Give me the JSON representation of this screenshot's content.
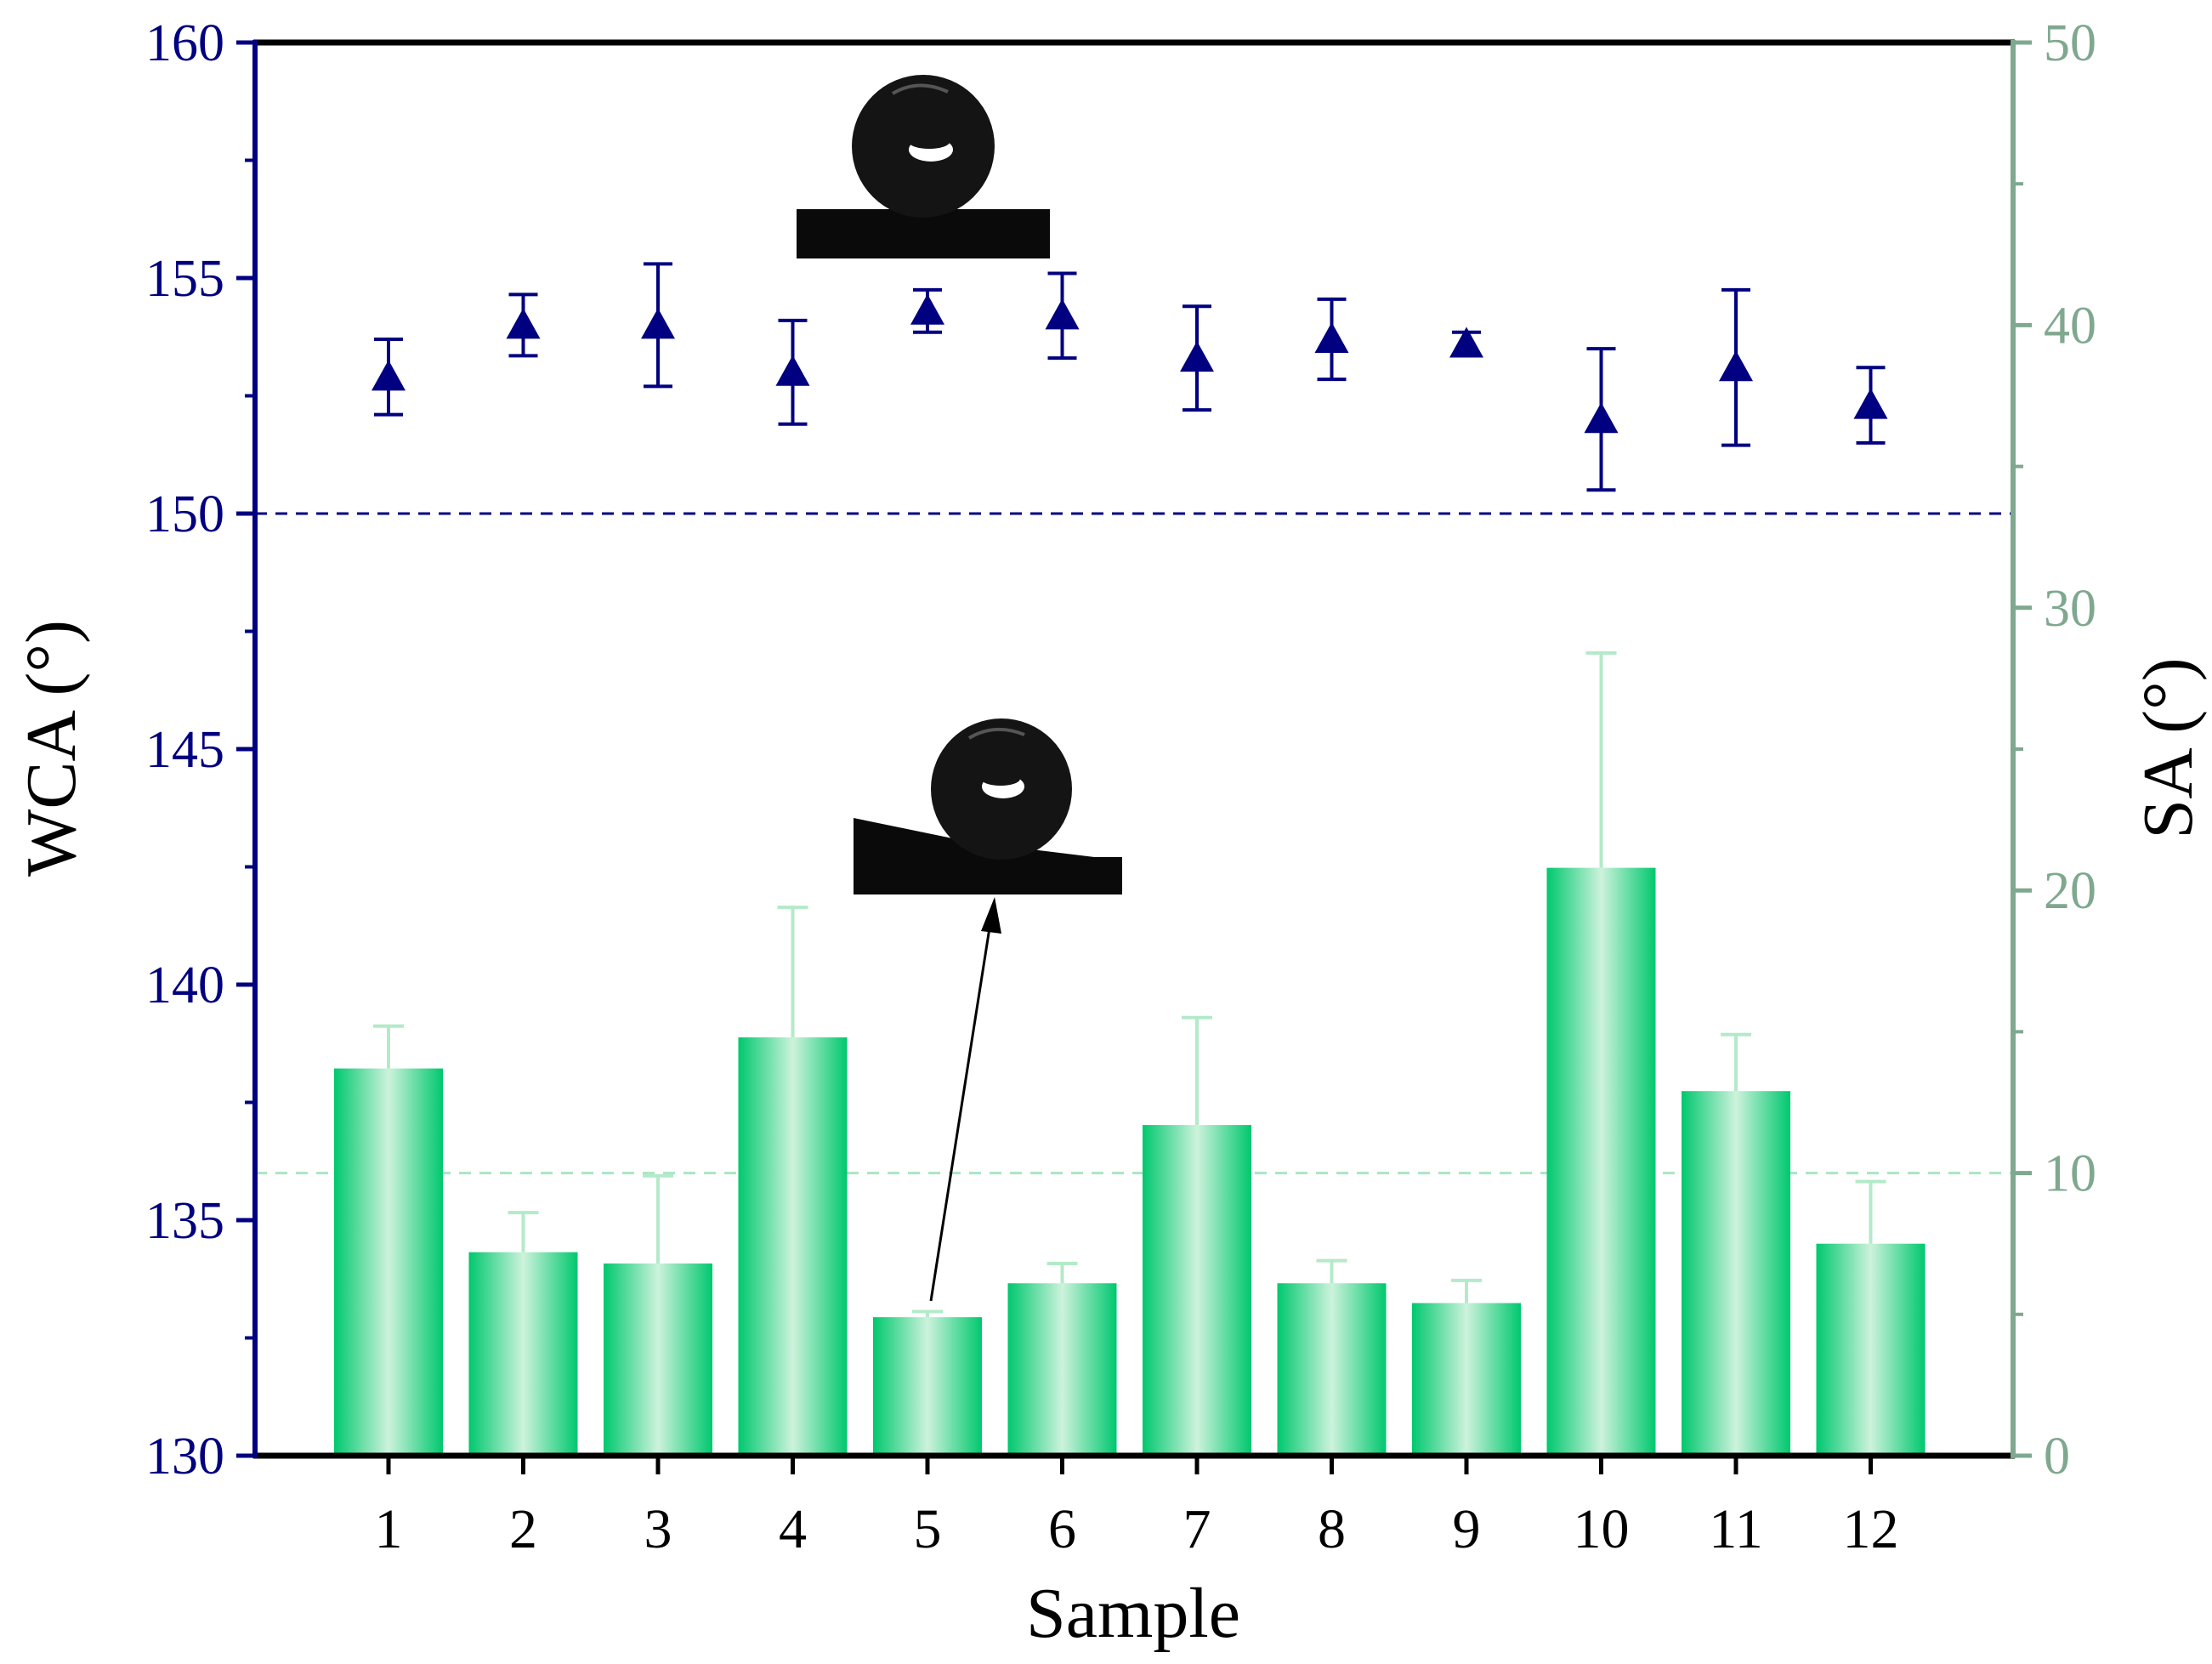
{
  "chart_data": {
    "type": "bar",
    "title": "",
    "xlabel": "Sample",
    "categories": [
      "1",
      "2",
      "3",
      "4",
      "5",
      "6",
      "7",
      "8",
      "9",
      "10",
      "11",
      "12"
    ],
    "y_left": {
      "label": "WCA (°)",
      "lim": [
        130,
        160
      ],
      "ticks": [
        "130",
        "135",
        "140",
        "145",
        "150",
        "155",
        "160"
      ],
      "reference_line": 150
    },
    "y_right": {
      "label": "SA (°)",
      "lim": [
        0,
        50
      ],
      "ticks": [
        "0",
        "10",
        "20",
        "30",
        "40",
        "50"
      ],
      "reference_line": 10
    },
    "series": [
      {
        "name": "SA",
        "type": "bar",
        "axis": "right",
        "values": [
          13.7,
          7.2,
          6.8,
          14.8,
          4.9,
          6.1,
          11.7,
          6.1,
          5.4,
          20.8,
          12.9,
          7.5
        ],
        "errors": [
          1.5,
          1.4,
          3.1,
          4.6,
          0.2,
          0.7,
          3.8,
          0.8,
          0.8,
          7.6,
          2.0,
          2.2
        ]
      },
      {
        "name": "WCA",
        "type": "scatter",
        "axis": "left",
        "marker": "triangle",
        "values": [
          152.9,
          154.0,
          154.0,
          153.0,
          154.3,
          154.2,
          153.3,
          153.7,
          153.6,
          152.0,
          153.1,
          152.3
        ],
        "errors": [
          0.8,
          0.65,
          1.3,
          1.1,
          0.45,
          0.9,
          1.1,
          0.85,
          0.25,
          1.5,
          1.65,
          0.8
        ]
      }
    ],
    "insets": [
      {
        "name": "droplet-inset-flat",
        "description_id": "droplet-on-flat-surface"
      },
      {
        "name": "droplet-inset-tilted",
        "description_id": "droplet-on-tilted-surface"
      }
    ],
    "colors": {
      "left_axis": "#000080",
      "right_axis": "#7FA88F",
      "bar_edge": "#00C86E",
      "bar_center": "#C8F0DA",
      "bar_error": "#B4EAC9",
      "wca_marker": "#000080"
    }
  }
}
